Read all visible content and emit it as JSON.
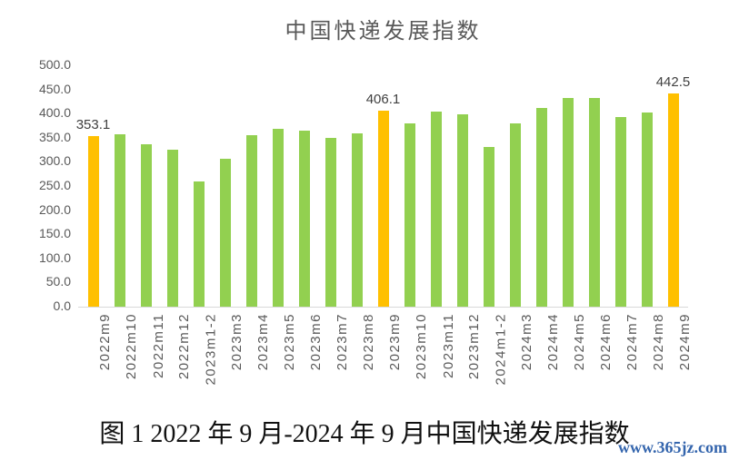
{
  "chart_data": {
    "type": "bar",
    "title": "中国快递发展指数",
    "categories": [
      "2022m9",
      "2022m10",
      "2022m11",
      "2022m12",
      "2023m1-2",
      "2023m3",
      "2023m4",
      "2023m5",
      "2023m6",
      "2023m7",
      "2023m8",
      "2023m9",
      "2023m10",
      "2023m11",
      "2023m12",
      "2024m1-2",
      "2024m3",
      "2024m4",
      "2024m5",
      "2024m6",
      "2024m7",
      "2024m8",
      "2024m9"
    ],
    "values": [
      353.1,
      356.5,
      336.0,
      326.0,
      259.5,
      306.0,
      354.5,
      368.0,
      364.5,
      349.0,
      359.0,
      406.1,
      380.0,
      404.0,
      398.0,
      330.0,
      380.0,
      412.5,
      432.5,
      432.5,
      392.0,
      403.0,
      442.5
    ],
    "data_labels": [
      {
        "index": 0,
        "text": "353.1"
      },
      {
        "index": 11,
        "text": "406.1"
      },
      {
        "index": 22,
        "text": "442.5"
      }
    ],
    "highlight_indices": [
      0,
      11,
      22
    ],
    "yticks": [
      "500.0",
      "450.0",
      "400.0",
      "350.0",
      "300.0",
      "250.0",
      "200.0",
      "150.0",
      "100.0",
      "50.0",
      "0.0"
    ],
    "ylim": [
      0,
      500
    ],
    "ytick_step": 50,
    "grid": false,
    "legend": "none",
    "bar_color": "#92D050",
    "highlight_color": "#FFC000",
    "axis_color": "#D9D9D9",
    "label_text_color": "#595959",
    "data_label_color": "#404040"
  },
  "caption": {
    "text": "图 1 2022 年 9 月-2024 年 9 月中国快递发展指数"
  },
  "watermark": {
    "text": "www.365jz.com",
    "color": "#2A5DA9"
  }
}
